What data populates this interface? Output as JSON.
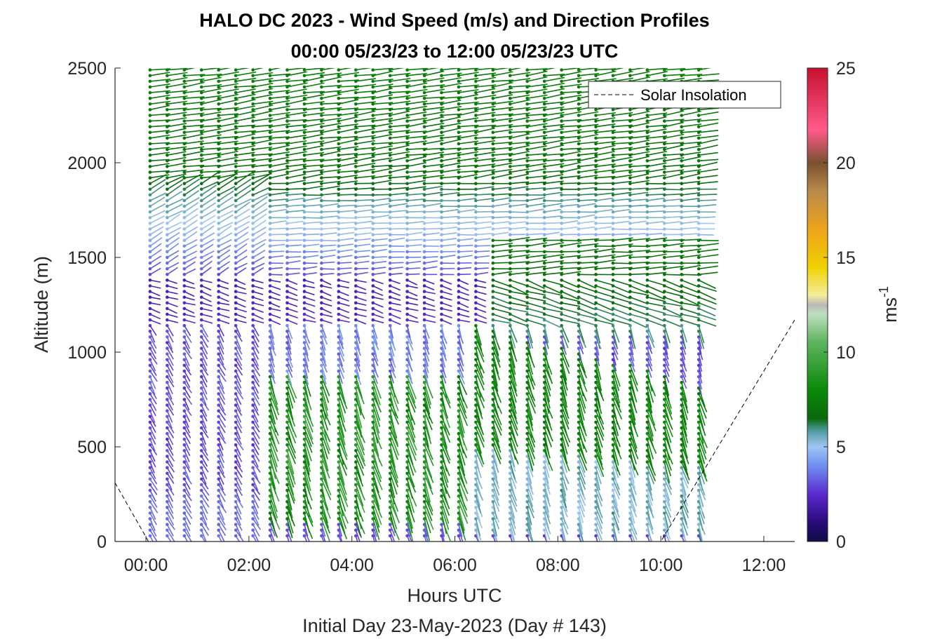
{
  "chart_data": {
    "type": "quiver",
    "title": "HALO DC 2023 - Wind Speed (m/s) and Direction Profiles",
    "subtitle": "00:00 05/23/23 to 12:00 05/23/23  UTC",
    "xlabel": "Hours UTC",
    "xlabel2": "Initial Day 23-May-2023 (Day # 143)",
    "ylabel": "Altitude (m)",
    "colorbar_label_base": "ms",
    "colorbar_label_exp": "-1",
    "xlim": [
      -0.6,
      12.6
    ],
    "ylim": [
      0,
      2500
    ],
    "x_ticks": [
      0,
      2,
      4,
      6,
      8,
      10,
      12
    ],
    "x_tick_labels": [
      "00:00",
      "02:00",
      "04:00",
      "06:00",
      "08:00",
      "10:00",
      "12:00"
    ],
    "y_ticks": [
      0,
      500,
      1000,
      1500,
      2000,
      2500
    ],
    "y_tick_labels": [
      "0",
      "500",
      "1000",
      "1500",
      "2000",
      "2500"
    ],
    "colorbar_range": [
      0,
      25
    ],
    "colorbar_ticks": [
      0,
      5,
      10,
      15,
      20,
      25
    ],
    "colorbar_tick_labels": [
      "0",
      "5",
      "10",
      "15",
      "20",
      "25"
    ],
    "legend": {
      "label": "Solar Insolation",
      "location": "top-right"
    },
    "profiles": {
      "time_start_hours": 0.08,
      "time_step_hours": 0.333,
      "time_count": 33,
      "altitude_start_m": 30,
      "altitude_step_m": 30,
      "altitude_end_m": 2490
    },
    "wind_speed_by_altitude": [
      {
        "altitude_m": 100,
        "speed_ms": 3
      },
      {
        "altitude_m": 400,
        "speed_ms": 7
      },
      {
        "altitude_m": 1000,
        "speed_ms": 3
      },
      {
        "altitude_m": 1400,
        "speed_ms": 2.5
      },
      {
        "altitude_m": 1700,
        "speed_ms": 5.5
      },
      {
        "altitude_m": 2200,
        "speed_ms": 7
      }
    ],
    "solar_insolation_line": {
      "x": [
        -0.6,
        0.05,
        10.0,
        12.6
      ],
      "y": [
        310,
        0,
        0,
        1170
      ]
    },
    "colormap": [
      "#0d0d45",
      "#3b0f9a",
      "#5a2ad0",
      "#6f8ff0",
      "#9fc6f5",
      "#4e9a9a",
      "#0a7d0a",
      "#1a8f1a",
      "#5db35d",
      "#bfe0bf",
      "#c8c8c8",
      "#f2ea7a",
      "#f0d000",
      "#eda31a",
      "#c8923c",
      "#8a5a40",
      "#ff5a8a",
      "#c8102e"
    ]
  }
}
